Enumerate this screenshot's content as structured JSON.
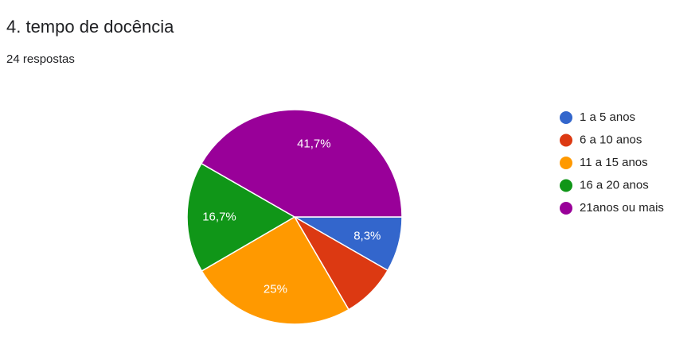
{
  "chart_data": {
    "type": "pie",
    "title": "4. tempo de docência",
    "subtitle": "24 respostas",
    "categories": [
      "1 a 5 anos",
      "6 a 10 anos",
      "11 a 15 anos",
      "16 a 20 anos",
      "21anos ou mais"
    ],
    "values": [
      8.3,
      8.3,
      25,
      16.7,
      41.7
    ],
    "value_labels": [
      "8,3%",
      null,
      "25%",
      "16,7%",
      "41,7%"
    ],
    "colors": [
      "#3366cc",
      "#dc3912",
      "#ff9900",
      "#109618",
      "#990099"
    ],
    "legend": "right"
  }
}
